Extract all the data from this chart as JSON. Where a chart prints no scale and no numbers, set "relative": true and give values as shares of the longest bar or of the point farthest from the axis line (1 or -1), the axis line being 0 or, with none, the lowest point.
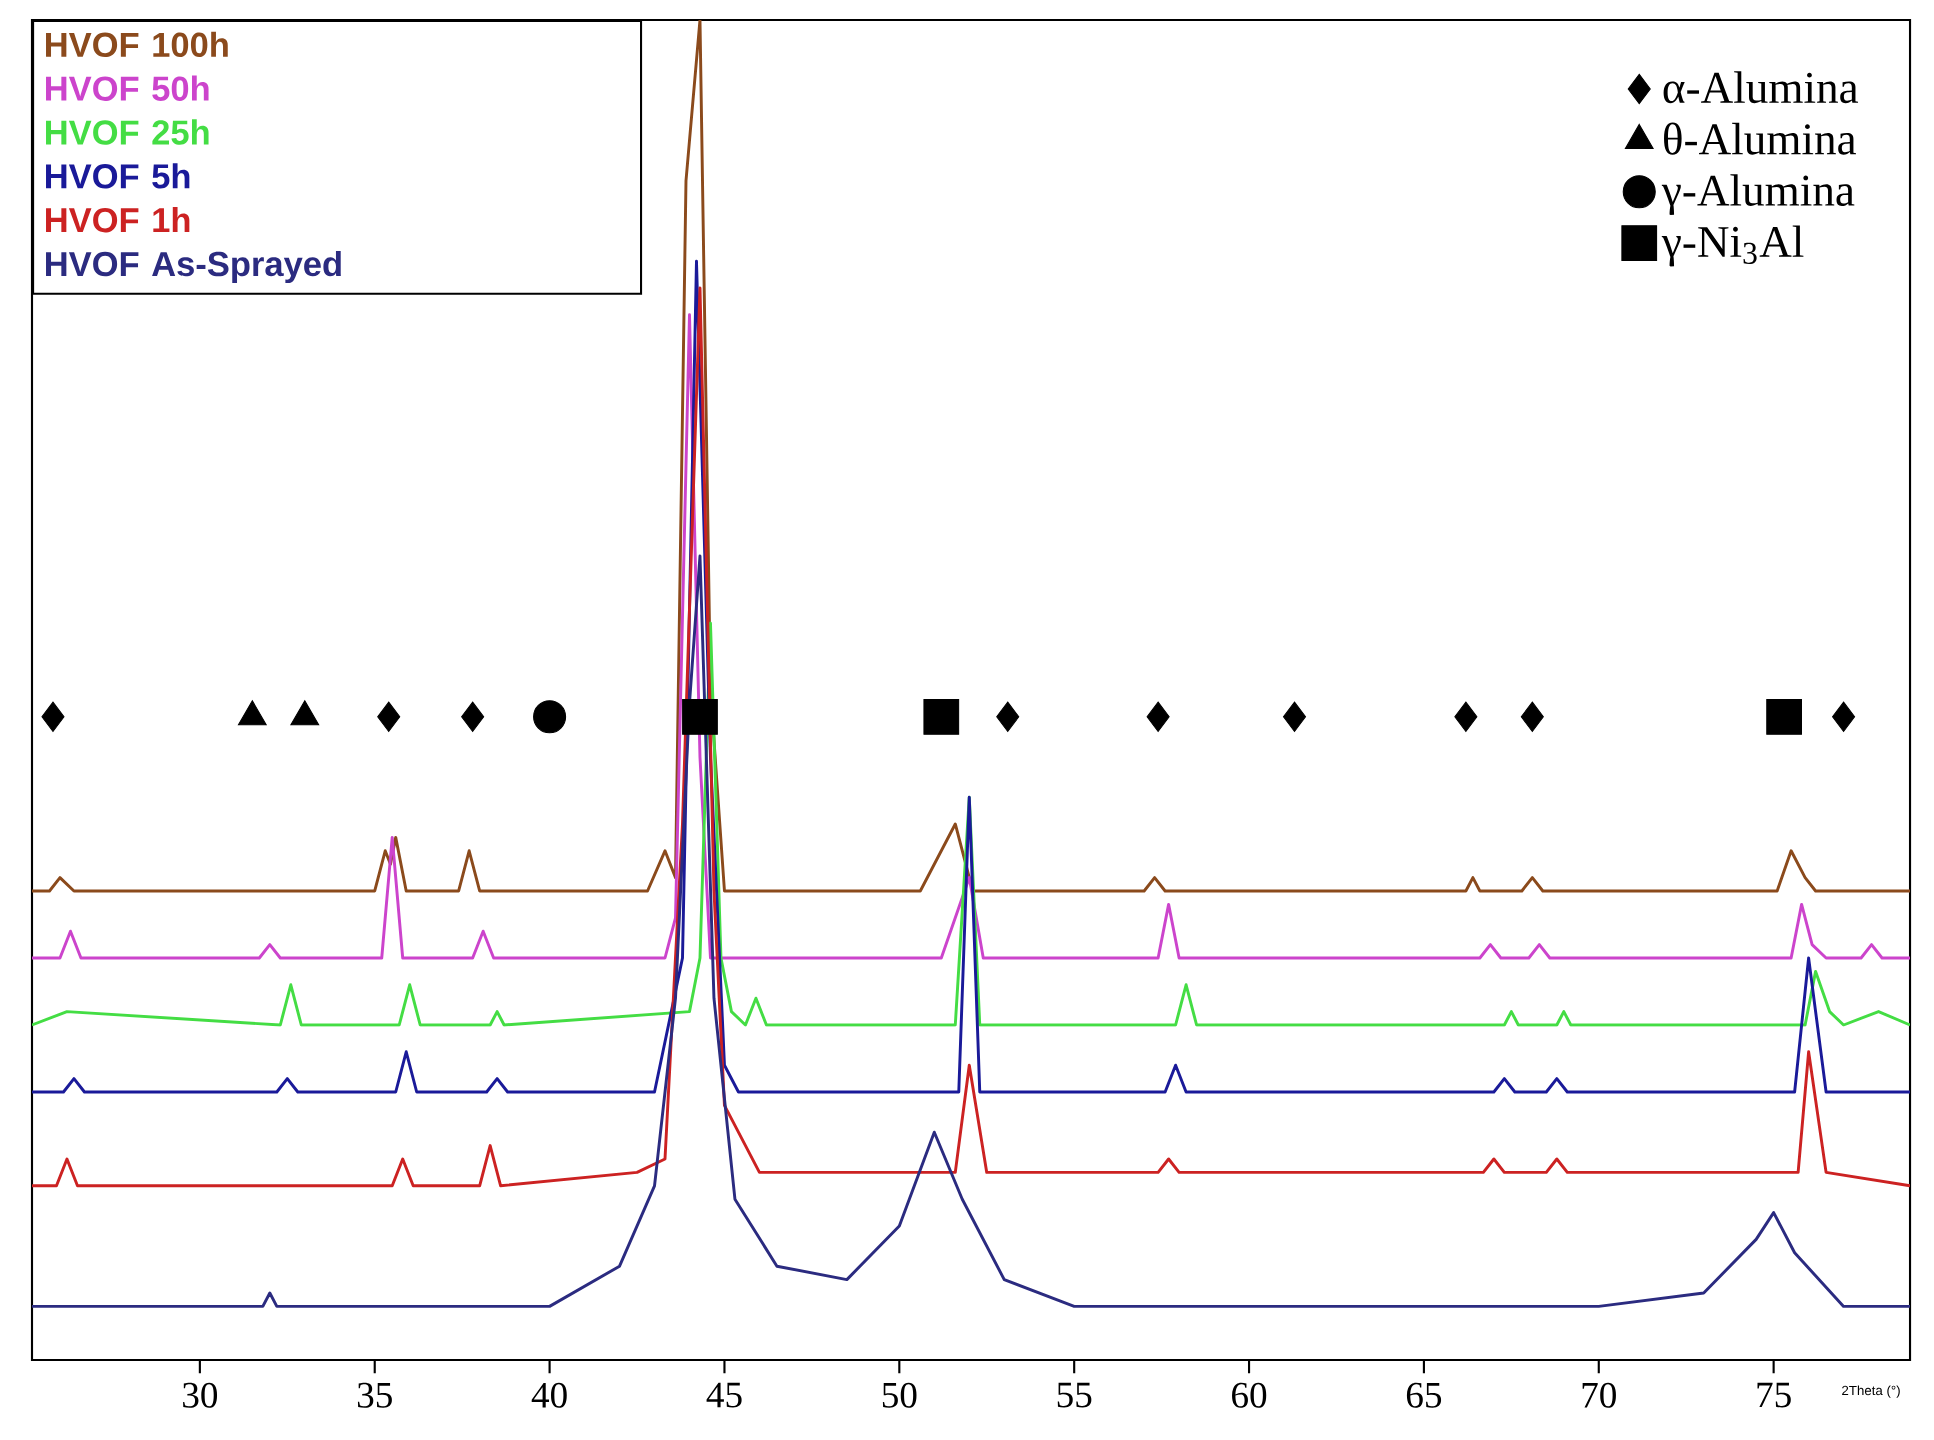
{
  "chart_data": {
    "type": "line",
    "xlabel": "2Theta (°)",
    "relative": true,
    "xlim": [
      25.2,
      78.9
    ],
    "xticks": [
      30,
      35,
      40,
      45,
      50,
      55,
      60,
      65,
      70,
      75
    ],
    "legend": "top right",
    "series": [
      {
        "name": "HVOF 100h",
        "color": "#8b4a1c",
        "x": [
          25.2,
          25.7,
          26.0,
          26.4,
          35.0,
          35.3,
          35.45,
          35.6,
          35.9,
          37.4,
          37.7,
          38.0,
          42.8,
          43.3,
          43.6,
          43.9,
          44.3,
          44.6,
          45.0,
          50.6,
          51.1,
          51.6,
          52.1,
          57.0,
          57.3,
          57.6,
          66.2,
          66.4,
          66.6,
          67.8,
          68.1,
          68.4,
          75.1,
          75.5,
          75.9,
          76.2,
          77.0,
          78.9
        ],
        "values": [
          0.35,
          0.35,
          0.36,
          0.35,
          0.35,
          0.38,
          0.37,
          0.39,
          0.35,
          0.35,
          0.38,
          0.35,
          0.35,
          0.38,
          0.36,
          0.88,
          1.0,
          0.5,
          0.35,
          0.35,
          null,
          0.4,
          0.35,
          0.35,
          0.36,
          0.35,
          0.35,
          0.36,
          0.35,
          0.35,
          0.36,
          0.35,
          0.35,
          0.38,
          0.36,
          0.35,
          0.35,
          0.35
        ]
      },
      {
        "name": "HVOF 50h",
        "color": "#cc44cc",
        "x": [
          25.2,
          26.0,
          26.3,
          26.6,
          31.7,
          32.0,
          32.3,
          35.2,
          35.5,
          35.8,
          37.8,
          38.1,
          38.4,
          43.3,
          43.6,
          44.0,
          44.3,
          44.6,
          51.2,
          51.6,
          52.0,
          52.4,
          57.4,
          57.7,
          58.0,
          66.6,
          66.9,
          67.2,
          68.0,
          68.3,
          68.6,
          75.5,
          75.8,
          76.1,
          76.5,
          77.5,
          77.8,
          78.1,
          78.9
        ],
        "values": [
          0.3,
          0.3,
          0.32,
          0.3,
          0.3,
          0.31,
          0.3,
          0.3,
          0.39,
          0.3,
          0.3,
          0.32,
          0.3,
          0.3,
          0.33,
          0.78,
          0.45,
          0.3,
          0.3,
          null,
          0.36,
          0.3,
          0.3,
          0.34,
          0.3,
          0.3,
          0.31,
          0.3,
          0.3,
          0.31,
          0.3,
          0.3,
          0.34,
          0.31,
          0.3,
          0.3,
          0.31,
          0.3,
          0.3
        ]
      },
      {
        "name": "HVOF 25h",
        "color": "#44dd44",
        "x": [
          25.2,
          26.2,
          32.3,
          32.6,
          32.9,
          35.7,
          36.0,
          36.3,
          38.3,
          38.5,
          38.7,
          44.0,
          44.3,
          44.6,
          44.9,
          45.2,
          45.6,
          45.9,
          46.2,
          51.6,
          52.0,
          52.3,
          57.9,
          58.2,
          58.5,
          67.3,
          67.5,
          67.7,
          68.8,
          69.0,
          69.2,
          75.9,
          76.2,
          76.6,
          77.0,
          78.0,
          78.9
        ],
        "values": [
          0.25,
          0.26,
          0.25,
          0.28,
          0.25,
          0.25,
          0.28,
          0.25,
          0.25,
          0.26,
          0.25,
          0.26,
          0.3,
          0.55,
          0.3,
          0.26,
          0.25,
          0.27,
          0.25,
          0.25,
          0.42,
          0.25,
          0.25,
          0.28,
          0.25,
          0.25,
          0.26,
          0.25,
          0.25,
          0.26,
          0.25,
          0.25,
          0.29,
          0.26,
          0.25,
          0.26,
          0.25
        ]
      },
      {
        "name": "HVOF 5h",
        "color": "#1a1a99",
        "x": [
          25.2,
          26.1,
          26.4,
          26.7,
          32.2,
          32.5,
          32.8,
          35.6,
          35.9,
          36.2,
          38.2,
          38.5,
          38.8,
          43.0,
          43.8,
          44.2,
          44.6,
          45.0,
          45.4,
          51.7,
          52.0,
          52.3,
          57.6,
          57.9,
          58.2,
          67.0,
          67.3,
          67.6,
          68.5,
          68.8,
          69.1,
          75.6,
          76.0,
          76.5,
          78.9
        ],
        "values": [
          0.2,
          0.2,
          0.21,
          0.2,
          0.2,
          0.21,
          0.2,
          0.2,
          0.23,
          0.2,
          0.2,
          0.21,
          0.2,
          0.2,
          0.3,
          0.82,
          0.45,
          0.22,
          0.2,
          0.2,
          0.42,
          0.2,
          0.2,
          0.22,
          0.2,
          0.2,
          0.21,
          0.2,
          0.2,
          0.21,
          0.2,
          0.2,
          0.3,
          0.2,
          0.2
        ]
      },
      {
        "name": "HVOF 1h",
        "color": "#cc2222",
        "x": [
          25.2,
          25.9,
          26.2,
          26.5,
          35.5,
          35.8,
          36.1,
          38.0,
          38.3,
          38.6,
          42.5,
          43.3,
          43.8,
          44.3,
          44.7,
          45.0,
          46.0,
          51.6,
          52.0,
          52.5,
          57.4,
          57.7,
          58.0,
          66.7,
          67.0,
          67.3,
          68.5,
          68.8,
          69.1,
          75.7,
          76.0,
          76.5,
          78.9
        ],
        "values": [
          0.13,
          0.13,
          0.15,
          0.13,
          0.13,
          0.15,
          0.13,
          0.13,
          0.16,
          0.13,
          0.14,
          0.15,
          0.4,
          0.8,
          0.35,
          0.19,
          0.14,
          0.14,
          0.22,
          0.14,
          0.14,
          0.15,
          0.14,
          0.14,
          0.15,
          0.14,
          0.14,
          0.15,
          0.14,
          0.14,
          0.23,
          0.14,
          0.13
        ]
      },
      {
        "name": "HVOF As-Sprayed",
        "color": "#2b2b80",
        "x": [
          25.2,
          30.0,
          31.8,
          32.0,
          32.2,
          36.0,
          40.0,
          42.0,
          43.0,
          43.6,
          44.0,
          44.3,
          44.7,
          45.3,
          46.5,
          48.5,
          50.0,
          51.0,
          51.8,
          53.0,
          55.0,
          60.0,
          70.0,
          73.0,
          74.5,
          75.0,
          75.6,
          77.0,
          78.9
        ],
        "values": [
          0.04,
          0.04,
          0.04,
          0.05,
          0.04,
          0.04,
          0.04,
          0.07,
          0.13,
          0.27,
          0.49,
          0.6,
          0.27,
          0.12,
          0.07,
          0.06,
          0.1,
          0.17,
          0.12,
          0.06,
          0.04,
          0.04,
          0.04,
          0.05,
          0.09,
          0.11,
          0.08,
          0.04,
          0.04
        ]
      },
      {
        "name": "α-Alumina",
        "type": "scatter",
        "marker": "diamond",
        "color": "#000000",
        "x": [
          25.8,
          35.4,
          37.8,
          53.1,
          57.4,
          61.3,
          66.2,
          68.1,
          77.0
        ],
        "values": [
          0.48,
          0.48,
          0.48,
          0.48,
          0.48,
          0.48,
          0.48,
          0.48,
          0.48
        ]
      },
      {
        "name": "θ-Alumina",
        "type": "scatter",
        "marker": "triangle",
        "color": "#000000",
        "x": [
          31.5,
          33.0
        ],
        "values": [
          0.48,
          0.48
        ]
      },
      {
        "name": "γ-Alumina",
        "type": "scatter",
        "marker": "circle",
        "color": "#000000",
        "x": [
          40.0
        ],
        "values": [
          0.48
        ]
      },
      {
        "name": "γ-Ni$_{3}$Al",
        "type": "scatter",
        "marker": "square",
        "color": "#000000",
        "x": [
          44.3,
          51.2,
          75.3
        ],
        "values": [
          0.48,
          0.48,
          0.48
        ]
      }
    ]
  }
}
